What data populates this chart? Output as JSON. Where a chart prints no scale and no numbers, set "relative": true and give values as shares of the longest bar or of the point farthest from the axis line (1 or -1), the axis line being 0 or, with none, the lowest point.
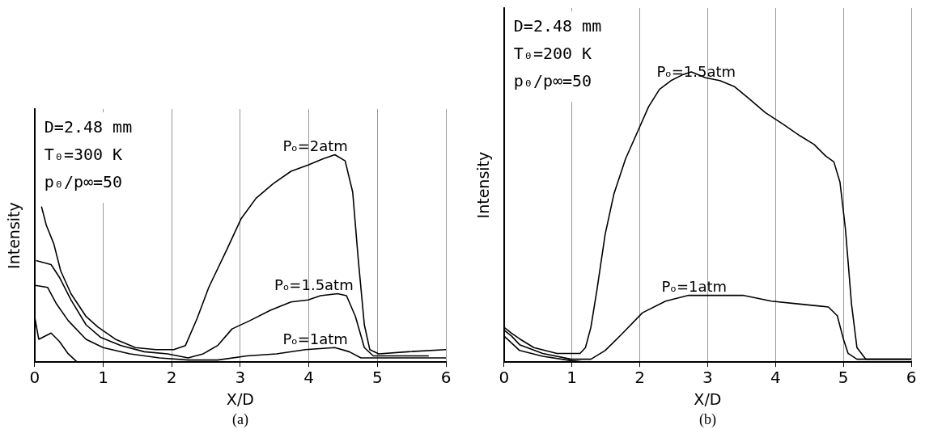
{
  "chart_data": [
    {
      "type": "line",
      "xlabel": "X/D",
      "ylabel": "Intensity",
      "xlim": [
        0,
        6
      ],
      "xticks": [
        0,
        1,
        2,
        3,
        4,
        5,
        6
      ],
      "relative": true,
      "grid": "x",
      "annotations": [
        "D=2.48 mm",
        "T₀=300 K",
        "p₀/p∞=50",
        "(a)"
      ],
      "series": [
        {
          "name": "Pₒ=2atm",
          "color": "#000000",
          "x": [
            0.1,
            0.17,
            0.28,
            0.38,
            0.53,
            0.75,
            0.92,
            1.18,
            1.47,
            1.77,
            2.03,
            2.2,
            2.37,
            2.54,
            2.8,
            3.01,
            3.23,
            3.48,
            3.74,
            3.99,
            4.21,
            4.38,
            4.53,
            4.64,
            4.72,
            4.81,
            4.89,
            5.02,
            5.45,
            6.0
          ],
          "values": [
            0.75,
            0.66,
            0.57,
            0.44,
            0.33,
            0.22,
            0.17,
            0.11,
            0.07,
            0.06,
            0.06,
            0.08,
            0.21,
            0.36,
            0.54,
            0.69,
            0.79,
            0.86,
            0.92,
            0.95,
            0.98,
            1.0,
            0.97,
            0.82,
            0.5,
            0.18,
            0.06,
            0.04,
            0.05,
            0.06
          ]
        },
        {
          "name": "Pₒ=1.5atm",
          "color": "#000000",
          "x": [
            0.02,
            0.24,
            0.36,
            0.53,
            0.75,
            0.96,
            1.26,
            1.6,
            1.94,
            2.24,
            2.46,
            2.67,
            2.88,
            3.14,
            3.44,
            3.74,
            3.99,
            4.17,
            4.42,
            4.55,
            4.68,
            4.81,
            4.94,
            5.45,
            5.75
          ],
          "values": [
            0.49,
            0.47,
            0.41,
            0.3,
            0.18,
            0.12,
            0.08,
            0.05,
            0.04,
            0.02,
            0.04,
            0.08,
            0.16,
            0.2,
            0.25,
            0.29,
            0.3,
            0.32,
            0.33,
            0.32,
            0.22,
            0.07,
            0.03,
            0.03,
            0.03
          ]
        },
        {
          "name": "Pₒ=1atm",
          "color": "#000000",
          "x": [
            0.01,
            0.19,
            0.32,
            0.49,
            0.75,
            1.0,
            1.39,
            1.82,
            2.24,
            2.67,
            3.1,
            3.53,
            3.95,
            4.38,
            4.59,
            4.76,
            5.02,
            6.0
          ],
          "values": [
            0.37,
            0.36,
            0.28,
            0.2,
            0.11,
            0.07,
            0.04,
            0.02,
            0.01,
            0.01,
            0.03,
            0.04,
            0.06,
            0.07,
            0.05,
            0.02,
            0.02,
            0.02
          ]
        },
        {
          "color": "#000000",
          "x": [
            0,
            0.06,
            0.24,
            0.36,
            0.49,
            0.62
          ],
          "values": [
            0.22,
            0.11,
            0.14,
            0.1,
            0.04,
            0
          ]
        }
      ]
    },
    {
      "type": "line",
      "xlabel": "X/D",
      "ylabel": "Intensity",
      "xlim": [
        0,
        6
      ],
      "xticks": [
        0,
        1,
        2,
        3,
        4,
        5,
        6
      ],
      "relative": true,
      "grid": "x",
      "annotations": [
        "D=2.48 mm",
        "T₀=200 K",
        "p₀/p∞=50",
        "(b)"
      ],
      "series": [
        {
          "name": "Pₒ=1.5atm",
          "color": "#000000",
          "x": [
            0,
            0.11,
            0.23,
            0.44,
            0.78,
            1.12,
            1.2,
            1.28,
            1.37,
            1.49,
            1.62,
            1.79,
            1.96,
            2.13,
            2.29,
            2.46,
            2.63,
            2.76,
            2.97,
            3.18,
            3.39,
            3.6,
            3.85,
            4.11,
            4.36,
            4.57,
            4.74,
            4.86,
            4.95,
            5.03,
            5.12,
            5.2,
            5.33,
            6.0
          ],
          "values": [
            0.12,
            0.1,
            0.08,
            0.05,
            0.03,
            0.03,
            0.05,
            0.12,
            0.25,
            0.44,
            0.58,
            0.7,
            0.79,
            0.88,
            0.94,
            0.97,
            0.99,
            1.0,
            0.98,
            0.97,
            0.95,
            0.91,
            0.86,
            0.82,
            0.78,
            0.75,
            0.71,
            0.69,
            0.62,
            0.46,
            0.2,
            0.05,
            0.01,
            0.01
          ]
        },
        {
          "name": "Pₒ=1atm",
          "color": "#000000",
          "x": [
            0,
            0.11,
            0.23,
            0.57,
            0.99,
            1.28,
            1.49,
            1.75,
            2.04,
            2.38,
            2.72,
            3.09,
            3.52,
            3.94,
            4.36,
            4.78,
            4.91,
            5.0,
            5.07,
            5.2,
            6.0
          ],
          "values": [
            0.11,
            0.09,
            0.06,
            0.03,
            0.01,
            0.01,
            0.04,
            0.1,
            0.17,
            0.21,
            0.23,
            0.23,
            0.23,
            0.21,
            0.2,
            0.19,
            0.16,
            0.08,
            0.03,
            0.01,
            0.01
          ]
        },
        {
          "color": "#000000",
          "x": [
            0,
            0.23,
            0.57,
            0.99,
            1.2
          ],
          "values": [
            0.09,
            0.04,
            0.02,
            0.005,
            0
          ]
        }
      ]
    }
  ]
}
